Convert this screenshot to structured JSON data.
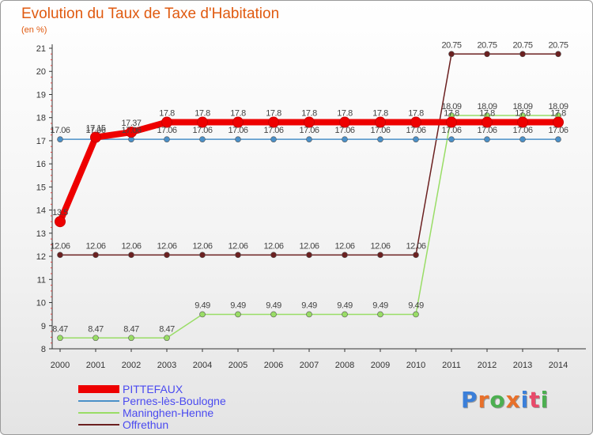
{
  "chart_data": {
    "type": "line",
    "title": "Evolution du Taux de Taxe d'Habitation",
    "subtitle": "(en %)",
    "x": [
      "2000",
      "2001",
      "2002",
      "2003",
      "2004",
      "2005",
      "2006",
      "2007",
      "2008",
      "2009",
      "2010",
      "2011",
      "2012",
      "2013",
      "2014"
    ],
    "ylim": [
      8,
      21
    ],
    "yticks": [
      8,
      9,
      10,
      11,
      12,
      13,
      14,
      15,
      16,
      17,
      18,
      19,
      20,
      21
    ],
    "grid": false,
    "legend_position": "bottom-left",
    "series": [
      {
        "name": "PITTEFAUX",
        "color": "#ee0000",
        "values": [
          13.5,
          17.15,
          17.37,
          17.8,
          17.8,
          17.8,
          17.8,
          17.8,
          17.8,
          17.8,
          17.8,
          17.8,
          17.8,
          17.8,
          17.8
        ],
        "labels": [
          "13.5",
          "17.15",
          "17.37",
          "17.8",
          "17.8",
          "17.8",
          "17.8",
          "17.8",
          "17.8",
          "17.8",
          "17.8",
          "17.8",
          "17.8",
          "17.8",
          "17.8"
        ]
      },
      {
        "name": "Pernes-lès-Boulogne",
        "color": "#4a90c8",
        "values": [
          17.06,
          17.06,
          17.06,
          17.06,
          17.06,
          17.06,
          17.06,
          17.06,
          17.06,
          17.06,
          17.06,
          17.06,
          17.06,
          17.06,
          17.06
        ],
        "labels": [
          "17.06",
          "17.06",
          "17.06",
          "17.06",
          "17.06",
          "17.06",
          "17.06",
          "17.06",
          "17.06",
          "17.06",
          "17.06",
          "17.06",
          "17.06",
          "17.06",
          "17.06"
        ]
      },
      {
        "name": "Maninghen-Henne",
        "color": "#99dd66",
        "values": [
          8.47,
          8.47,
          8.47,
          8.47,
          9.49,
          9.49,
          9.49,
          9.49,
          9.49,
          9.49,
          9.49,
          18.09,
          18.09,
          18.09,
          18.09
        ],
        "labels": [
          "8.47",
          "8.47",
          "8.47",
          "8.47",
          "9.49",
          "9.49",
          "9.49",
          "9.49",
          "9.49",
          "9.49",
          "9.49",
          "18.09",
          "18.09",
          "18.09",
          "18.09"
        ]
      },
      {
        "name": "Offrethun",
        "color": "#6b2020",
        "values": [
          12.06,
          12.06,
          12.06,
          12.06,
          12.06,
          12.06,
          12.06,
          12.06,
          12.06,
          12.06,
          12.06,
          20.75,
          20.75,
          20.75,
          20.75
        ],
        "labels": [
          "12.06",
          "12.06",
          "12.06",
          "12.06",
          "12.06",
          "12.06",
          "12.06",
          "12.06",
          "12.06",
          "12.06",
          "12.06",
          "20.75",
          "20.75",
          "20.75",
          "20.75"
        ]
      }
    ]
  },
  "logo": {
    "letters": [
      "P",
      "r",
      "o",
      "x",
      "i",
      "t",
      "i"
    ],
    "colors": [
      "#3b7fd9",
      "#e8702a",
      "#4caf50",
      "#e8702a",
      "#3b7fd9",
      "#e84a6a",
      "#4caf50"
    ]
  }
}
